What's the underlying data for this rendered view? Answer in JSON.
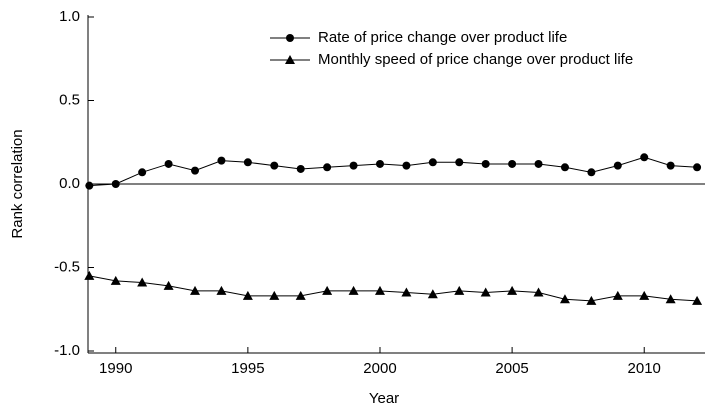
{
  "chart_data": {
    "type": "line",
    "x_label": "Year",
    "y_label": "Rank correlation",
    "x": [
      1989,
      1990,
      1991,
      1992,
      1993,
      1994,
      1995,
      1996,
      1997,
      1998,
      1999,
      2000,
      2001,
      2002,
      2003,
      2004,
      2005,
      2006,
      2007,
      2008,
      2009,
      2010,
      2011,
      2012
    ],
    "series": [
      {
        "name": "Rate of price change over product life",
        "color": "#000000",
        "marker": "circle",
        "values": [
          -0.01,
          0.0,
          0.07,
          0.12,
          0.08,
          0.14,
          0.13,
          0.11,
          0.09,
          0.1,
          0.11,
          0.12,
          0.11,
          0.13,
          0.13,
          0.12,
          0.12,
          0.12,
          0.1,
          0.07,
          0.11,
          0.16,
          0.11,
          0.1
        ]
      },
      {
        "name": "Monthly speed of price change over product life",
        "color": "#000000",
        "marker": "triangle",
        "values": [
          -0.55,
          -0.58,
          -0.59,
          -0.61,
          -0.64,
          -0.64,
          -0.67,
          -0.67,
          -0.67,
          -0.64,
          -0.64,
          -0.64,
          -0.65,
          -0.66,
          -0.64,
          -0.65,
          -0.64,
          -0.65,
          -0.69,
          -0.7,
          -0.67,
          -0.67,
          -0.69,
          -0.7
        ]
      }
    ],
    "xlim": [
      1988.95,
      2012.3
    ],
    "xticks": [
      1990,
      1995,
      2000,
      2005,
      2010
    ],
    "ylim": [
      -1.0,
      1.0
    ],
    "yticks": [
      {
        "value": -1.0,
        "label": "-1.0"
      },
      {
        "value": -0.5,
        "label": "-0.5"
      },
      {
        "value": 0,
        "label": "0.0"
      },
      {
        "value": 0.5,
        "label": "0.5"
      },
      {
        "value": 1.0,
        "label": "1.0"
      }
    ],
    "hline": 0,
    "legend": "top-right",
    "grid": false
  }
}
